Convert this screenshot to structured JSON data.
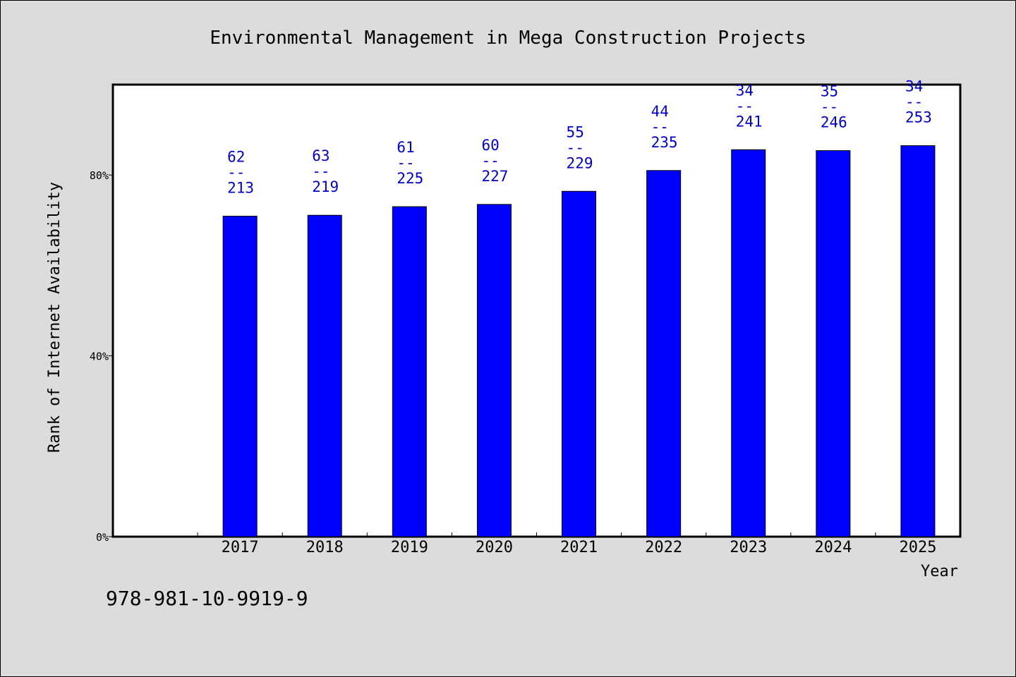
{
  "chart_data": {
    "type": "bar",
    "title": "Environmental Management in Mega Construction Projects",
    "xlabel": "Year",
    "ylabel": "Rank of Internet Availability",
    "categories": [
      "2017",
      "2018",
      "2019",
      "2020",
      "2021",
      "2022",
      "2023",
      "2024",
      "2025"
    ],
    "series": [
      {
        "values": [
          70.9,
          71.1,
          73.0,
          73.5,
          76.4,
          81.0,
          85.6,
          85.4,
          86.5
        ],
        "color": "#0000ff"
      }
    ],
    "data_labels": [
      {
        "top": "62",
        "sep": "--",
        "bottom": "213"
      },
      {
        "top": "63",
        "sep": "--",
        "bottom": "219"
      },
      {
        "top": "61",
        "sep": "--",
        "bottom": "225"
      },
      {
        "top": "60",
        "sep": "--",
        "bottom": "227"
      },
      {
        "top": "55",
        "sep": "--",
        "bottom": "229"
      },
      {
        "top": "44",
        "sep": "--",
        "bottom": "235"
      },
      {
        "top": "34",
        "sep": "--",
        "bottom": "241"
      },
      {
        "top": "35",
        "sep": "--",
        "bottom": "246"
      },
      {
        "top": "34",
        "sep": "--",
        "bottom": "253"
      }
    ],
    "yticks": [
      {
        "value": 0,
        "label": "0%"
      },
      {
        "value": 40,
        "label": "40%"
      },
      {
        "value": 80,
        "label": "80%"
      }
    ],
    "ylim": [
      0,
      100
    ],
    "x_slots": 10,
    "grid": false,
    "colors": {
      "bar": "#0000ff",
      "data_label": "#0000cc",
      "background": "#dcdcdc",
      "plot_background": "#ffffff"
    }
  },
  "footer": {
    "isbn": "978-981-10-9919-9"
  }
}
